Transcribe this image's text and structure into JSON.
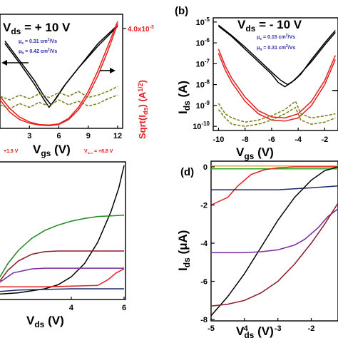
{
  "chart_data": [
    {
      "panel": "a",
      "type": "line",
      "title": "V$ds = + 10 V",
      "header": {
        "prefix": "V",
        "sub": "ds",
        "value": " = + 10 V"
      },
      "annotations": [
        "μe = 0.31 cm²/Vs",
        "μh = 0.42 cm²/Vs",
        "+1.9 V",
        "V th-e = +8.8 V"
      ],
      "mob_e": {
        "mu": "μ",
        "sub": "e",
        "text": " = 0.31 cm",
        "sup": "2",
        "unit": "/Vs"
      },
      "mob_h": {
        "mu": "μ",
        "sub": "h",
        "text": " = 0.42 cm",
        "sup": "2",
        "unit": "/Vs"
      },
      "vth_h_label": "+1.9 V",
      "vth_e_label": {
        "v": "V",
        "sub": "th-e",
        "rest": " = +8.8 V"
      },
      "xlabel": {
        "main": "V",
        "sub": "gs",
        "unit": " (V)"
      },
      "ylabel_right": {
        "pre": "Sqrt(I",
        "sub": "ds",
        "mid": ") (A",
        "sup": "1/2",
        "post": ")"
      },
      "x_ticks": [
        "3",
        "6",
        "9",
        "12"
      ],
      "x_tick_values": [
        3,
        6,
        9,
        12
      ],
      "xlim": [
        0,
        12
      ],
      "right_axis_tick": {
        "value": "4.0x10",
        "sup": "-3"
      },
      "colors": {
        "ids": "#000000",
        "sqrt": "#e21f1f",
        "gate": "#7a7a12",
        "fit": "#f0a0a0"
      },
      "series": [
        {
          "id": "ids-fwd",
          "color": "#000000",
          "x": [
            0.5,
            2,
            3.5,
            4.5,
            5,
            5.5,
            6.5,
            8,
            10,
            12
          ],
          "y": [
            6.8,
            5.2,
            3.5,
            2.2,
            1.6,
            2.1,
            3.3,
            4.8,
            6.6,
            8.2
          ]
        },
        {
          "id": "ids-rev",
          "color": "#000000",
          "x": [
            0.5,
            2,
            3.5,
            4.5,
            5.2,
            5.7,
            6.7,
            8.2,
            10,
            12
          ],
          "y": [
            7.0,
            5.4,
            3.8,
            2.5,
            1.8,
            2.3,
            3.5,
            5.0,
            6.8,
            8.3
          ]
        },
        {
          "id": "sqrt-1",
          "color": "#e21f1f",
          "x": [
            0,
            1,
            2,
            3,
            4,
            5,
            6,
            7,
            8,
            9,
            10,
            11,
            12
          ],
          "y": [
            2.2,
            1.2,
            0.6,
            0.3,
            0.15,
            0.1,
            0.2,
            0.6,
            1.4,
            2.6,
            4.2,
            6.2,
            8.4
          ]
        },
        {
          "id": "sqrt-2",
          "color": "#e21f1f",
          "x": [
            0,
            1,
            2,
            3,
            4,
            5,
            6,
            7,
            8,
            9,
            10,
            11,
            12
          ],
          "y": [
            2.5,
            1.5,
            0.8,
            0.4,
            0.2,
            0.15,
            0.25,
            0.7,
            1.6,
            2.9,
            4.6,
            6.6,
            8.6
          ]
        },
        {
          "id": "gate-1",
          "color": "#7a7a12",
          "x": [
            0,
            1,
            2,
            3,
            4,
            5,
            6,
            7,
            8,
            9,
            10,
            11,
            12
          ],
          "y": [
            2.5,
            2.2,
            2.6,
            2.3,
            2.7,
            2.4,
            2.8,
            2.5,
            2.9,
            2.4,
            2.6,
            2.9,
            3.3
          ]
        },
        {
          "id": "gate-2",
          "color": "#7a7a12",
          "x": [
            0,
            1,
            2,
            3,
            4,
            5,
            6,
            7,
            8,
            9,
            10,
            11,
            12
          ],
          "y": [
            1.8,
            1.5,
            1.9,
            1.6,
            2.0,
            1.7,
            2.2,
            1.8,
            2.1,
            1.7,
            1.9,
            2.3,
            2.6
          ]
        }
      ]
    },
    {
      "panel": "b",
      "type": "line",
      "yscale": "log",
      "header": {
        "prefix": "V",
        "sub": "ds",
        "value": " = - 10 V"
      },
      "mob_e": {
        "mu": "μ",
        "sub": "e",
        "text": " = 0.15 cm",
        "sup": "2",
        "unit": "/Vs"
      },
      "mob_h": {
        "mu": "μ",
        "sub": "h",
        "text": " = 0.31 cm",
        "sup": "2",
        "unit": "/Vs"
      },
      "xlabel": {
        "main": "V",
        "sub": "gs",
        "unit": " (V)"
      },
      "ylabel": {
        "main": "I",
        "sub": "ds",
        "unit": " (A)"
      },
      "x_ticks": [
        "-10",
        "-8",
        "-6",
        "-4",
        "-2"
      ],
      "x_tick_values": [
        -10,
        -8,
        -6,
        -4,
        -2
      ],
      "xlim": [
        -10.4,
        -1
      ],
      "y_ticks": [
        {
          "b": "10",
          "e": "-5"
        },
        {
          "b": "10",
          "e": "-6"
        },
        {
          "b": "10",
          "e": "-7"
        },
        {
          "b": "10",
          "e": "-8"
        },
        {
          "b": "10",
          "e": "-9"
        },
        {
          "b": "10",
          "e": "-10"
        }
      ],
      "y_tick_exp": [
        -5,
        -6,
        -7,
        -8,
        -9,
        -10
      ],
      "ylim_exp": [
        -10.2,
        -4.8
      ],
      "series": [
        {
          "id": "ids-fwd",
          "color": "#000000",
          "x": [
            -10,
            -9,
            -8,
            -7,
            -6,
            -5.5,
            -5,
            -4.5,
            -4,
            -3,
            -2,
            -1.2
          ],
          "y_exp": [
            -5.2,
            -5.7,
            -6.3,
            -6.9,
            -7.5,
            -7.9,
            -8.1,
            -7.9,
            -7.6,
            -6.9,
            -6.1,
            -5.5
          ]
        },
        {
          "id": "ids-rev",
          "color": "#000000",
          "x": [
            -10,
            -9,
            -8,
            -7,
            -6,
            -5.3,
            -4.8,
            -4.3,
            -3.8,
            -3,
            -2,
            -1.2
          ],
          "y_exp": [
            -5.15,
            -5.65,
            -6.2,
            -6.8,
            -7.4,
            -7.8,
            -8.0,
            -7.8,
            -7.5,
            -6.8,
            -6.0,
            -5.4
          ]
        },
        {
          "id": "red-1",
          "color": "#e21f1f",
          "x": [
            -10,
            -9.5,
            -9,
            -8,
            -7,
            -6,
            -5,
            -4,
            -3,
            -2,
            -1.2
          ],
          "y_exp": [
            -6.5,
            -7.3,
            -7.9,
            -8.8,
            -9.4,
            -9.7,
            -9.75,
            -9.6,
            -9.0,
            -8.0,
            -6.8
          ]
        },
        {
          "id": "red-2",
          "color": "#e21f1f",
          "x": [
            -10,
            -9.5,
            -9,
            -8,
            -7,
            -6,
            -5,
            -4,
            -3,
            -2,
            -1.2
          ],
          "y_exp": [
            -6.3,
            -7.1,
            -7.7,
            -8.6,
            -9.25,
            -9.55,
            -9.6,
            -9.4,
            -8.8,
            -7.8,
            -6.6
          ]
        },
        {
          "id": "gate-1",
          "color": "#7a7a12",
          "x": [
            -10,
            -9.5,
            -9,
            -8,
            -7,
            -6,
            -5,
            -4.2,
            -3.8,
            -3,
            -2,
            -1.2
          ],
          "y_exp": [
            -8.9,
            -9.4,
            -9.6,
            -9.8,
            -9.7,
            -9.5,
            -9.2,
            -8.8,
            -9.4,
            -9.6,
            -9.5,
            -9.4
          ]
        },
        {
          "id": "gate-2",
          "color": "#7a7a12",
          "x": [
            -10,
            -9.5,
            -9,
            -8,
            -7,
            -6,
            -5,
            -4.2,
            -3.8,
            -3,
            -2,
            -1.2
          ],
          "y_exp": [
            -9.2,
            -9.6,
            -9.9,
            -10.0,
            -9.9,
            -9.7,
            -9.4,
            -9.1,
            -9.7,
            -9.9,
            -9.8,
            -9.6
          ]
        }
      ]
    },
    {
      "panel": "c",
      "type": "line",
      "xlabel": {
        "main": "V",
        "sub": "ds",
        "unit": " (V)"
      },
      "x_ticks": [
        "4",
        "6"
      ],
      "x_tick_values": [
        4,
        6
      ],
      "xlim": [
        1.3,
        6
      ],
      "ylim": [
        0,
        10
      ],
      "series": [
        {
          "id": "c-black",
          "color": "#000000",
          "x": [
            1.3,
            2,
            3,
            3.5,
            4,
            4.5,
            5,
            5.5,
            5.8,
            6
          ],
          "y": [
            0.3,
            0.4,
            0.7,
            1.0,
            1.6,
            2.6,
            4.2,
            6.5,
            8.3,
            10
          ]
        },
        {
          "id": "c-green",
          "color": "#1e8a1e",
          "x": [
            1.3,
            1.6,
            2,
            2.5,
            3,
            3.5,
            4,
            4.5,
            5,
            5.5,
            6
          ],
          "y": [
            1.6,
            2.6,
            3.6,
            4.5,
            5.1,
            5.5,
            5.8,
            6.0,
            6.15,
            6.2,
            6.25
          ]
        },
        {
          "id": "c-maroon",
          "color": "#8b1a2a",
          "x": [
            1.3,
            1.6,
            2,
            2.5,
            3,
            3.5,
            4,
            5,
            6
          ],
          "y": [
            1.3,
            2.1,
            2.8,
            3.3,
            3.5,
            3.55,
            3.55,
            3.55,
            3.55
          ]
        },
        {
          "id": "c-purple",
          "color": "#7a2a9a",
          "x": [
            1.3,
            1.8,
            2.5,
            3,
            4,
            5,
            6
          ],
          "y": [
            1.2,
            1.9,
            2.2,
            2.25,
            2.25,
            2.25,
            2.25
          ]
        },
        {
          "id": "c-red",
          "color": "#e21f1f",
          "x": [
            1.3,
            2,
            3,
            4,
            5,
            5.4,
            5.7,
            6
          ],
          "y": [
            0.85,
            0.85,
            0.85,
            0.9,
            0.95,
            1.4,
            1.9,
            2.2
          ]
        },
        {
          "id": "c-navy",
          "color": "#1a2a6a",
          "x": [
            1.3,
            2,
            3,
            4,
            5,
            6
          ],
          "y": [
            0.5,
            0.6,
            0.65,
            0.7,
            0.7,
            0.7
          ]
        }
      ]
    },
    {
      "panel": "d",
      "type": "line",
      "xlabel": {
        "main": "V",
        "sub": "ds",
        "unit": " (V)"
      },
      "ylabel": {
        "main": "I",
        "sub": "ds",
        "unit": " (μA)"
      },
      "x_ticks": [
        "-5",
        "-4",
        "-3",
        "-2"
      ],
      "x_tick_values": [
        -5,
        -4,
        -3,
        -2
      ],
      "y_ticks": [
        "0",
        "-2",
        "-4",
        "-6",
        "-8"
      ],
      "y_tick_values": [
        0,
        -2,
        -4,
        -6,
        -8
      ],
      "xlim": [
        -5,
        -1.2
      ],
      "ylim": [
        -8,
        0.3
      ],
      "series": [
        {
          "id": "d-orange",
          "color": "#f0a020",
          "x": [
            -5,
            -4,
            -3,
            -2,
            -1.2
          ],
          "y": [
            0.05,
            0.05,
            0.05,
            0.05,
            0.05
          ]
        },
        {
          "id": "d-green",
          "color": "#2aa82a",
          "x": [
            -5,
            -4,
            -3,
            -2,
            -1.2
          ],
          "y": [
            -0.1,
            -0.1,
            -0.1,
            -0.1,
            -0.1
          ]
        },
        {
          "id": "d-red",
          "color": "#e21f1f",
          "x": [
            -5,
            -4.5,
            -4.2,
            -3.8,
            -3.4,
            -3,
            -2.5,
            -2,
            -1.2
          ],
          "y": [
            -2.0,
            -1.6,
            -1.0,
            -0.4,
            -0.15,
            -0.05,
            0,
            0,
            0
          ]
        },
        {
          "id": "d-navy",
          "color": "#1a2a6a",
          "x": [
            -5,
            -4,
            -3,
            -2.5,
            -2,
            -1.2
          ],
          "y": [
            -1.2,
            -1.2,
            -1.2,
            -1.15,
            -1.1,
            -1.0
          ]
        },
        {
          "id": "d-black",
          "color": "#000000",
          "x": [
            -5,
            -4.5,
            -4,
            -3.5,
            -3,
            -2.5,
            -2,
            -1.6,
            -1.2
          ],
          "y": [
            -7.8,
            -6.8,
            -5.6,
            -4.2,
            -2.8,
            -1.6,
            -0.7,
            -0.2,
            0
          ]
        },
        {
          "id": "d-purple",
          "color": "#7a2a9a",
          "x": [
            -5,
            -4.5,
            -4,
            -3.5,
            -3,
            -2.5,
            -2.2,
            -1.8,
            -1.5,
            -1.2
          ],
          "y": [
            -4.5,
            -4.5,
            -4.5,
            -4.45,
            -4.35,
            -4.1,
            -3.8,
            -3.2,
            -2.6,
            -2.2
          ]
        },
        {
          "id": "d-maroon",
          "color": "#8b1a2a",
          "x": [
            -5,
            -4.5,
            -4,
            -3.5,
            -3,
            -2.5,
            -2,
            -1.6,
            -1.2
          ],
          "y": [
            -7.3,
            -7.2,
            -7.0,
            -6.6,
            -6.0,
            -5.1,
            -4.0,
            -3.0,
            -1.9
          ]
        }
      ]
    }
  ],
  "labels": {
    "panel_b": "(b)",
    "panel_d": "(d)"
  }
}
